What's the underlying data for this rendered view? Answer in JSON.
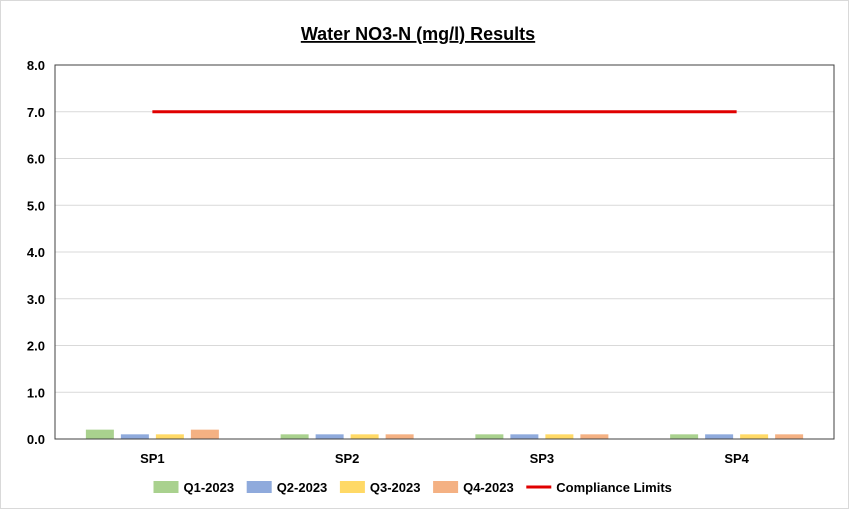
{
  "chart_data": {
    "type": "bar",
    "title": "Water NO3-N (mg/l) Results",
    "xlabel": "",
    "ylabel": "",
    "categories": [
      "SP1",
      "SP2",
      "SP3",
      "SP4"
    ],
    "ylim": [
      0,
      8
    ],
    "yticks": [
      "0.0",
      "1.0",
      "2.0",
      "3.0",
      "4.0",
      "5.0",
      "6.0",
      "7.0",
      "8.0"
    ],
    "grid": true,
    "legend_position": "bottom",
    "series": [
      {
        "name": "Q1-2023",
        "color": "#a9d18e",
        "values": [
          0.2,
          0.1,
          0.1,
          0.1
        ]
      },
      {
        "name": "Q2-2023",
        "color": "#8faadc",
        "values": [
          0.1,
          0.1,
          0.1,
          0.1
        ]
      },
      {
        "name": "Q3-2023",
        "color": "#ffd966",
        "values": [
          0.1,
          0.1,
          0.1,
          0.1
        ]
      },
      {
        "name": "Q4-2023",
        "color": "#f4b183",
        "values": [
          0.2,
          0.1,
          0.1,
          0.1
        ]
      }
    ],
    "limit_line": {
      "name": "Compliance Limits",
      "color": "#e00000",
      "value": 7.0,
      "from_category": "SP1",
      "to_category": "SP4"
    }
  }
}
